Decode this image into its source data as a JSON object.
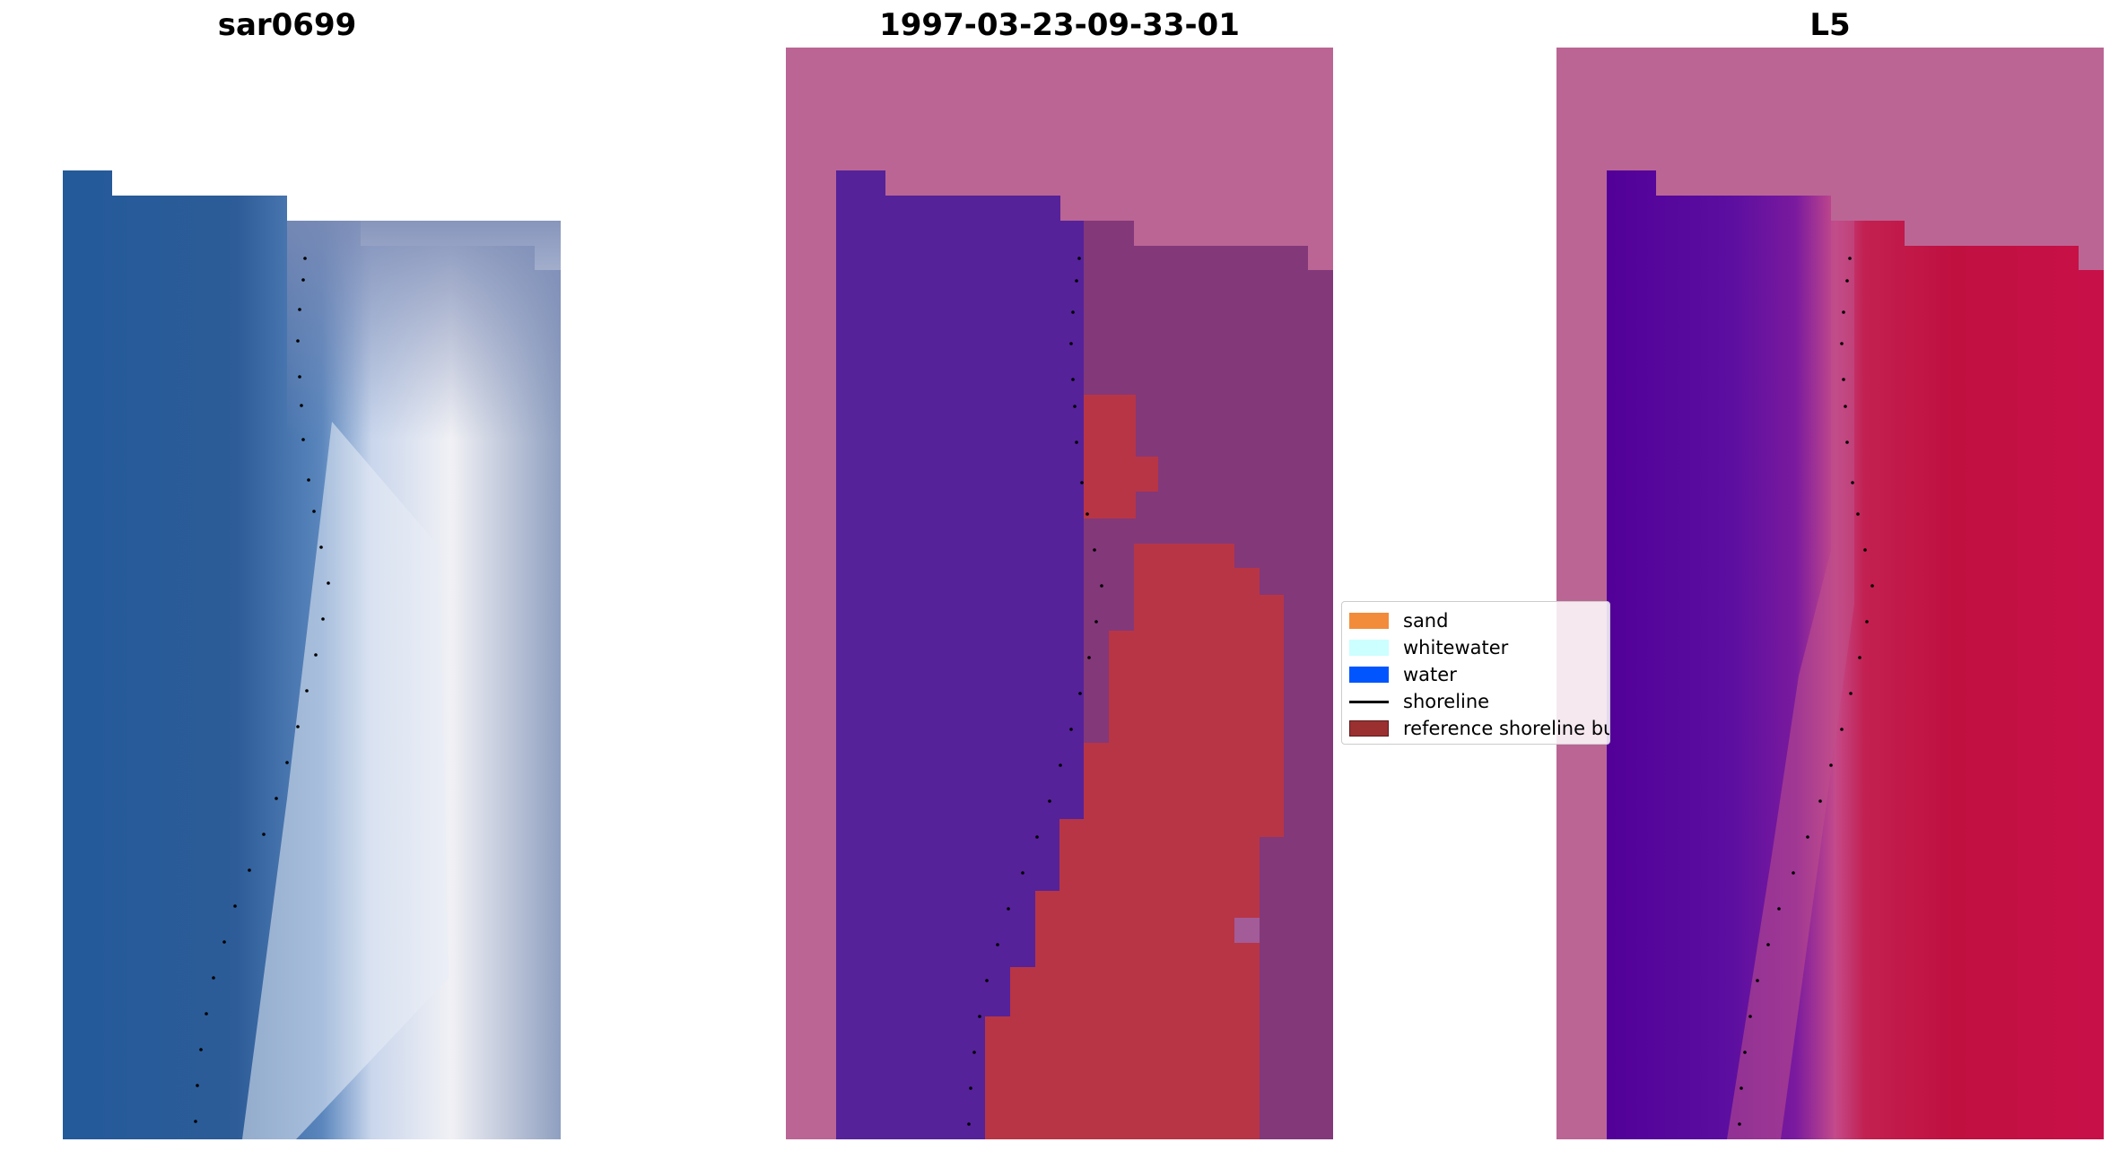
{
  "panels": [
    {
      "title": "sar0699"
    },
    {
      "title": "1997-03-23-09-33-01"
    },
    {
      "title": "L5"
    }
  ],
  "legend": {
    "items": [
      {
        "label": "sand",
        "kind": "patch",
        "color": "#f28c3b"
      },
      {
        "label": "whitewater",
        "kind": "patch",
        "color": "#ccffff"
      },
      {
        "label": "water",
        "kind": "patch",
        "color": "#0055ff"
      },
      {
        "label": "shoreline",
        "kind": "line",
        "color": "#000000"
      },
      {
        "label": "reference shoreline buffer",
        "kind": "patch",
        "color": "#9b3030"
      }
    ]
  },
  "colors": {
    "nodata_pink": "#bb6595",
    "water_class": "#552299",
    "buffer_red": "#b83545",
    "land_purple": "#83387a",
    "shoreline_dots": "#000000"
  }
}
